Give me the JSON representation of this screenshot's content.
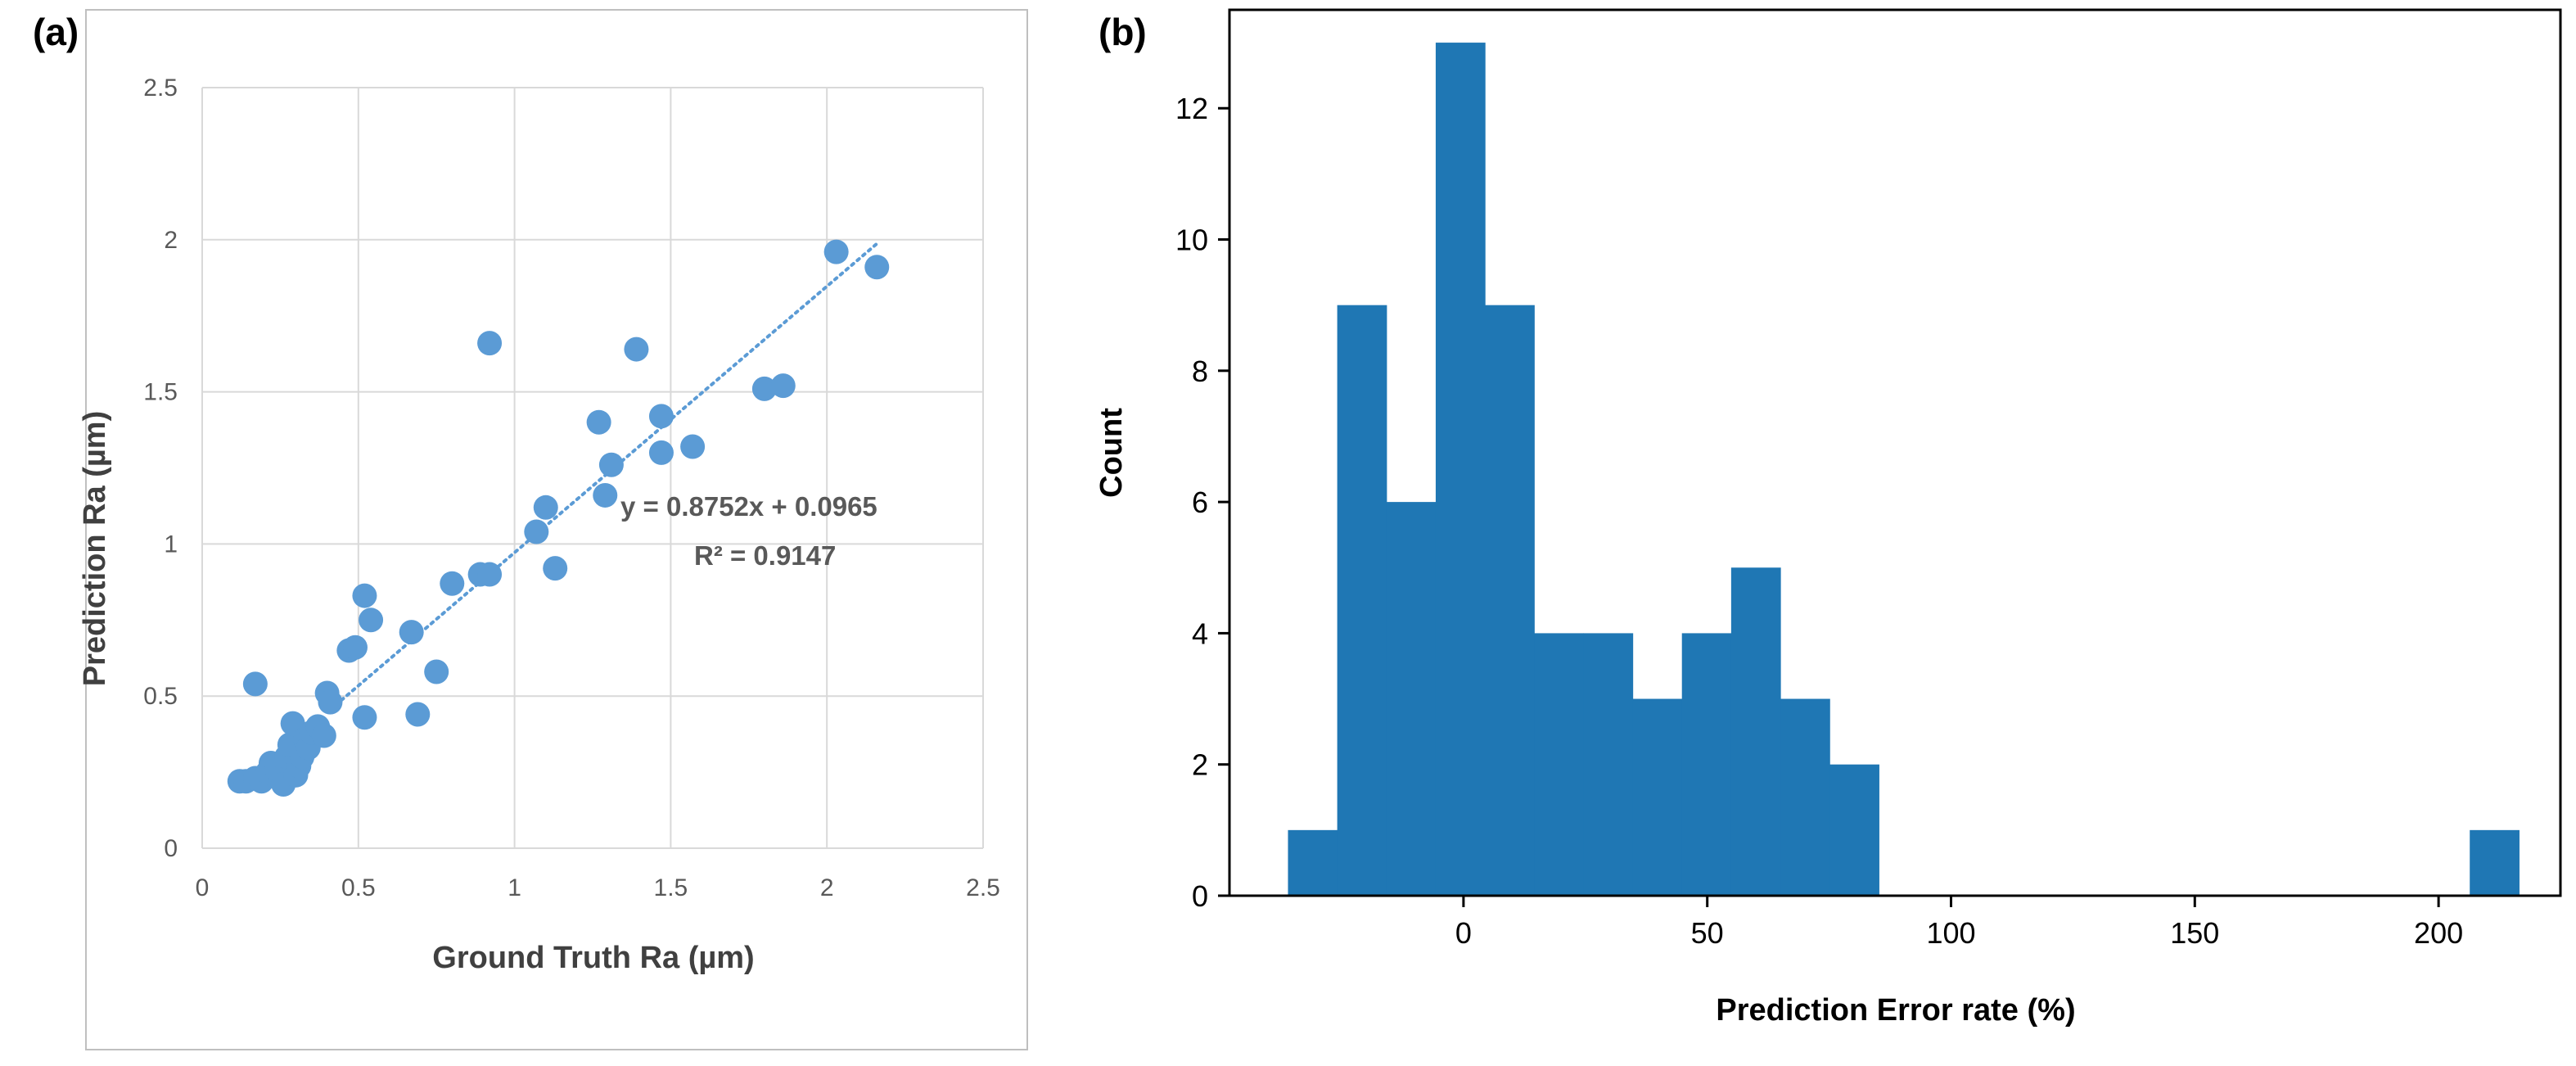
{
  "panels": {
    "a": {
      "label": "(a)"
    },
    "b": {
      "label": "(b)"
    }
  },
  "colors": {
    "scatter_point": "#5b9bd5",
    "trendline": "#5b9bd5",
    "gridline": "#d9d9d9",
    "hist_bar": "#1f77b4",
    "panel_border": "#bfbfbf"
  },
  "chart_data": [
    {
      "id": "a",
      "type": "scatter",
      "title": "",
      "xlabel": "Ground Truth Ra (µm)",
      "ylabel": "Prediction Ra (µm)",
      "xlim": [
        0,
        2.5
      ],
      "ylim": [
        0,
        2.5
      ],
      "xticks": [
        0,
        0.5,
        1,
        1.5,
        2,
        2.5
      ],
      "yticks": [
        0,
        0.5,
        1,
        1.5,
        2,
        2.5
      ],
      "xtick_labels": [
        "0",
        "0.5",
        "1",
        "1.5",
        "2",
        "2.5"
      ],
      "ytick_labels": [
        "0",
        "0.5",
        "1",
        "1.5",
        "2",
        "2.5"
      ],
      "grid": true,
      "points": [
        [
          0.12,
          0.22
        ],
        [
          0.14,
          0.22
        ],
        [
          0.17,
          0.23
        ],
        [
          0.19,
          0.22
        ],
        [
          0.21,
          0.25
        ],
        [
          0.22,
          0.28
        ],
        [
          0.24,
          0.26
        ],
        [
          0.25,
          0.23
        ],
        [
          0.26,
          0.21
        ],
        [
          0.27,
          0.3
        ],
        [
          0.28,
          0.34
        ],
        [
          0.29,
          0.41
        ],
        [
          0.3,
          0.24
        ],
        [
          0.31,
          0.27
        ],
        [
          0.32,
          0.3
        ],
        [
          0.33,
          0.36
        ],
        [
          0.34,
          0.33
        ],
        [
          0.35,
          0.38
        ],
        [
          0.37,
          0.4
        ],
        [
          0.39,
          0.37
        ],
        [
          0.4,
          0.51
        ],
        [
          0.41,
          0.48
        ],
        [
          0.17,
          0.54
        ],
        [
          0.47,
          0.65
        ],
        [
          0.49,
          0.66
        ],
        [
          0.52,
          0.83
        ],
        [
          0.52,
          0.43
        ],
        [
          0.54,
          0.75
        ],
        [
          0.67,
          0.71
        ],
        [
          0.69,
          0.44
        ],
        [
          0.75,
          0.58
        ],
        [
          0.8,
          0.87
        ],
        [
          0.89,
          0.9
        ],
        [
          0.92,
          0.9
        ],
        [
          0.92,
          1.66
        ],
        [
          1.07,
          1.04
        ],
        [
          1.1,
          1.12
        ],
        [
          1.13,
          0.92
        ],
        [
          1.27,
          1.4
        ],
        [
          1.29,
          1.16
        ],
        [
          1.31,
          1.26
        ],
        [
          1.39,
          1.64
        ],
        [
          1.47,
          1.42
        ],
        [
          1.47,
          1.3
        ],
        [
          1.57,
          1.32
        ],
        [
          1.8,
          1.51
        ],
        [
          1.86,
          1.52
        ],
        [
          2.03,
          1.96
        ],
        [
          2.16,
          1.91
        ]
      ],
      "trendline": {
        "slope": 0.8752,
        "intercept": 0.0965,
        "x_range": [
          0.41,
          2.16
        ],
        "style": "dotted"
      },
      "annotations": {
        "equation": "y = 0.8752x + 0.0965",
        "r2": "R² = 0.9147"
      }
    },
    {
      "id": "b",
      "type": "histogram",
      "title": "",
      "xlabel": "Prediction Error rate (%)",
      "ylabel": "Count",
      "xlim": [
        -48,
        225
      ],
      "ylim": [
        0,
        13.5
      ],
      "xticks": [
        0,
        50,
        100,
        150,
        200
      ],
      "yticks": [
        0,
        2,
        4,
        6,
        8,
        10,
        12
      ],
      "xtick_labels": [
        "0",
        "50",
        "100",
        "150",
        "200"
      ],
      "ytick_labels": [
        "0",
        "2",
        "4",
        "6",
        "8",
        "10",
        "12"
      ],
      "bin_start": -36,
      "bin_width": 10.1,
      "counts": [
        1,
        9,
        6,
        13,
        9,
        4,
        4,
        3,
        4,
        5,
        3,
        2,
        0,
        0,
        0,
        0,
        0,
        0,
        0,
        0,
        0,
        0,
        0,
        0,
        1
      ]
    }
  ]
}
